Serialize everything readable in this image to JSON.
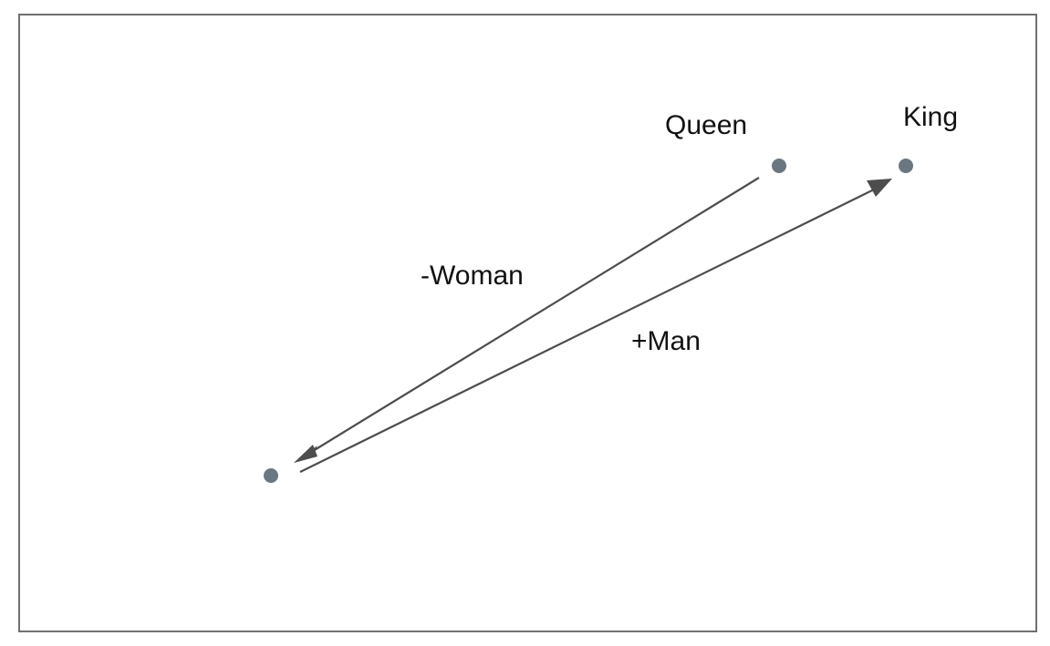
{
  "diagram": {
    "points": [
      {
        "id": "queen",
        "label": "Queen"
      },
      {
        "id": "king",
        "label": "King"
      },
      {
        "id": "origin",
        "label": ""
      }
    ],
    "arrows": [
      {
        "from": "queen",
        "to": "origin",
        "label": "-Woman"
      },
      {
        "from": "origin",
        "to": "king",
        "label": "+Man"
      }
    ],
    "colors": {
      "point": "#6b7780",
      "arrow": "#4d4d4d",
      "frame": "#707070",
      "text": "#111111"
    }
  }
}
